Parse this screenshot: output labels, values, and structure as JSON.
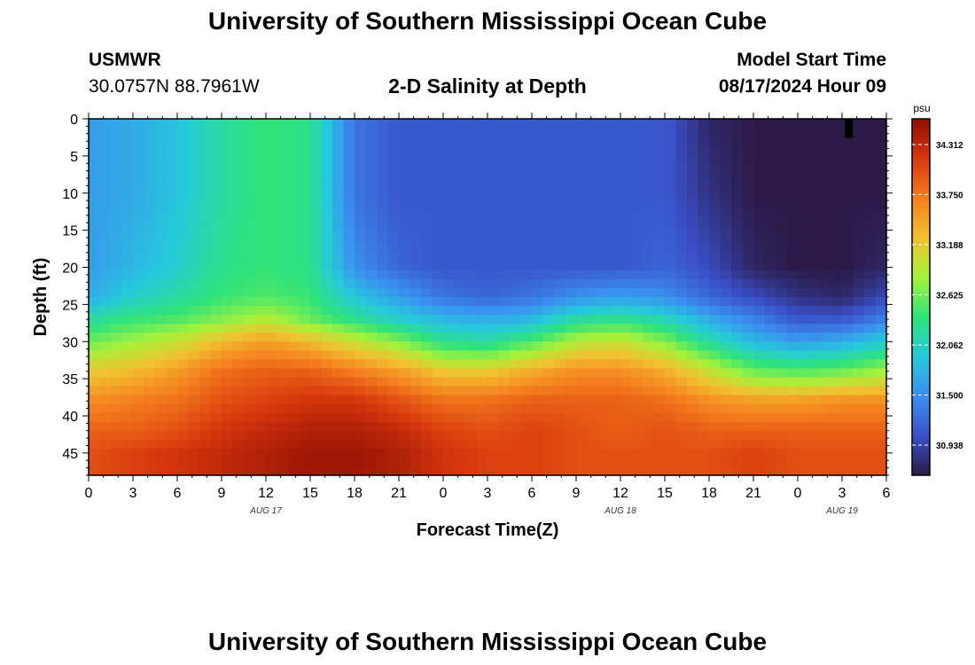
{
  "header": {
    "title": "University of Southern Mississippi Ocean Cube",
    "station": "USMWR",
    "coordinates": "30.0757N  88.7961W",
    "subtitle": "2-D Salinity at Depth",
    "model_start_label": "Model Start Time",
    "model_start_value": "08/17/2024 Hour 09"
  },
  "footer": {
    "title": "University of Southern Mississippi Ocean Cube"
  },
  "chart_data": {
    "type": "heatmap",
    "xlabel": "Forecast Time(Z)",
    "ylabel": "Depth (ft)",
    "x_tick_labels": [
      "0",
      "3",
      "6",
      "9",
      "12",
      "15",
      "18",
      "21",
      "0",
      "3",
      "6",
      "9",
      "12",
      "15",
      "18",
      "21",
      "0",
      "3",
      "6"
    ],
    "date_labels": [
      {
        "label": "AUG 17",
        "hour_offset": 12
      },
      {
        "label": "AUG 18",
        "hour_offset": 36
      },
      {
        "label": "AUG 19",
        "hour_offset": 51
      }
    ],
    "xlim_hours": [
      0,
      54
    ],
    "y_ticks": [
      0,
      5,
      10,
      15,
      20,
      25,
      30,
      35,
      40,
      45
    ],
    "ylim_ft": [
      0,
      48
    ],
    "y_inverted": true,
    "colorbar": {
      "unit": "psu",
      "ticks": [
        "34.312",
        "33.750",
        "33.188",
        "32.625",
        "32.062",
        "31.500",
        "30.938"
      ],
      "range": [
        30.6,
        34.6
      ],
      "colors": [
        "#2b1a47",
        "#3a50c8",
        "#3b8ef0",
        "#26c9dc",
        "#2fe37a",
        "#a6f23a",
        "#f2c030",
        "#f47d1e",
        "#d8380e",
        "#8e0d03"
      ]
    },
    "depth_profile_ft": [
      0,
      10,
      20,
      24,
      27,
      30,
      34,
      38,
      42,
      45,
      48
    ],
    "time_points_hours": [
      0,
      3,
      6,
      9,
      12,
      15,
      18,
      21,
      24,
      27,
      30,
      33,
      36,
      39,
      42,
      45,
      48,
      51,
      54
    ],
    "salinity_psu": [
      [
        31.6,
        31.6,
        31.6,
        31.7,
        32.2,
        32.6,
        33.2,
        33.6,
        33.9,
        34.0,
        34.0
      ],
      [
        31.7,
        31.7,
        31.8,
        32.0,
        32.4,
        32.8,
        33.3,
        33.7,
        33.9,
        34.1,
        34.1
      ],
      [
        31.9,
        31.9,
        32.0,
        32.2,
        32.5,
        33.0,
        33.5,
        33.8,
        34.0,
        34.2,
        34.2
      ],
      [
        32.2,
        32.2,
        32.3,
        32.4,
        32.7,
        33.3,
        33.8,
        34.0,
        34.2,
        34.3,
        34.3
      ],
      [
        32.4,
        32.4,
        32.4,
        32.5,
        32.9,
        33.5,
        33.9,
        34.1,
        34.3,
        34.4,
        34.4
      ],
      [
        32.3,
        32.3,
        32.3,
        32.4,
        32.6,
        33.3,
        33.9,
        34.2,
        34.4,
        34.5,
        34.5
      ],
      [
        31.3,
        31.3,
        31.5,
        31.9,
        32.3,
        33.0,
        33.7,
        34.2,
        34.4,
        34.5,
        34.5
      ],
      [
        31.1,
        31.1,
        31.2,
        31.6,
        32.0,
        32.7,
        33.5,
        34.0,
        34.3,
        34.4,
        34.4
      ],
      [
        31.1,
        31.1,
        31.1,
        31.3,
        31.8,
        32.3,
        33.2,
        33.8,
        34.1,
        34.2,
        34.2
      ],
      [
        31.1,
        31.1,
        31.1,
        31.2,
        31.7,
        32.2,
        33.2,
        33.8,
        34.0,
        34.1,
        34.1
      ],
      [
        31.1,
        31.1,
        31.1,
        31.3,
        31.8,
        32.5,
        33.4,
        33.9,
        34.1,
        34.1,
        34.1
      ],
      [
        31.1,
        31.1,
        31.1,
        31.5,
        32.2,
        32.9,
        33.6,
        33.9,
        34.0,
        34.0,
        34.0
      ],
      [
        31.1,
        31.1,
        31.1,
        31.6,
        32.3,
        33.0,
        33.6,
        33.9,
        33.9,
        34.0,
        34.0
      ],
      [
        31.1,
        31.1,
        31.2,
        31.5,
        32.1,
        32.7,
        33.4,
        33.8,
        34.0,
        34.0,
        34.0
      ],
      [
        30.7,
        30.8,
        31.0,
        31.2,
        31.7,
        32.2,
        33.0,
        33.6,
        33.9,
        34.0,
        34.0
      ],
      [
        30.6,
        30.6,
        30.7,
        31.0,
        31.4,
        31.8,
        32.6,
        33.5,
        33.9,
        34.1,
        34.1
      ],
      [
        30.6,
        30.6,
        30.6,
        30.8,
        31.1,
        31.6,
        32.5,
        33.5,
        33.9,
        34.0,
        34.0
      ],
      [
        30.6,
        30.6,
        30.6,
        30.7,
        31.1,
        31.7,
        32.6,
        33.6,
        33.9,
        34.0,
        34.0
      ],
      [
        30.6,
        30.6,
        30.7,
        31.0,
        31.4,
        32.0,
        32.8,
        33.6,
        33.9,
        34.0,
        34.0
      ]
    ]
  }
}
